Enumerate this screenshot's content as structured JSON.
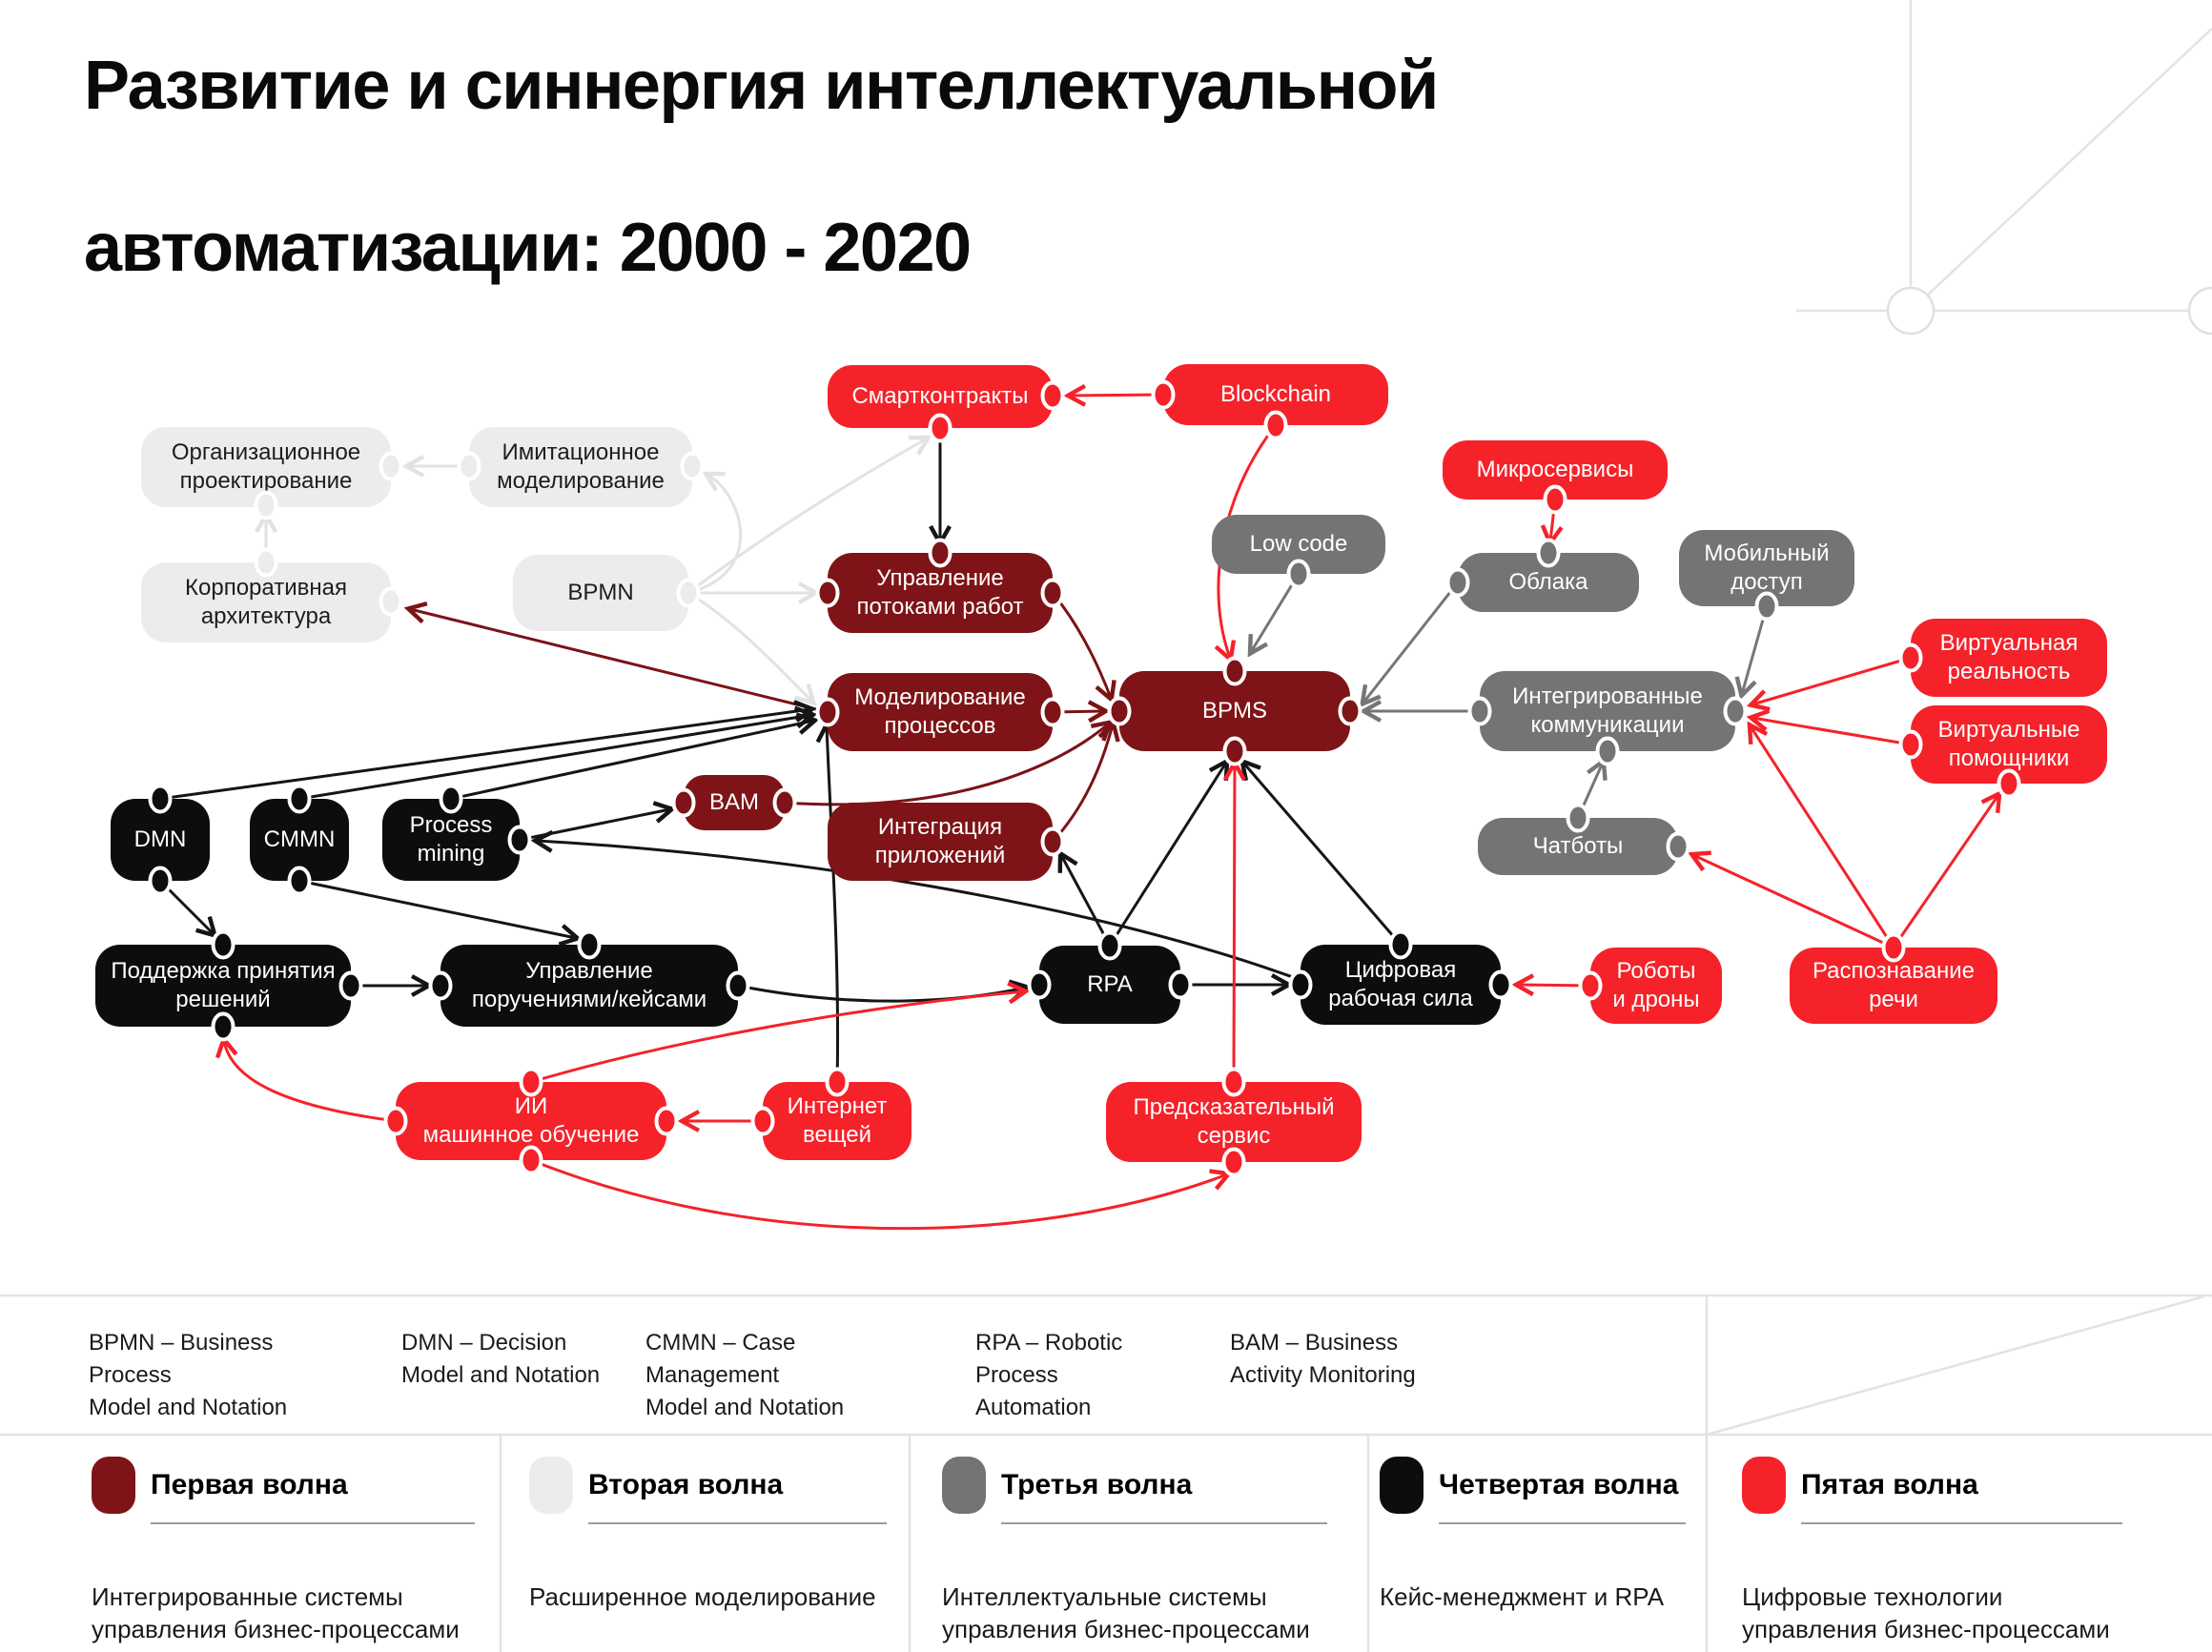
{
  "header": {
    "title_line1": "Развитие и синнергия интеллектуальной",
    "title_line2": "автоматизации: 2000 - 2020"
  },
  "waves": [
    {
      "name": "Первая волна",
      "color": "#7E1417",
      "description": "Интегрированные системы\nуправления бизнес-процессами"
    },
    {
      "name": "Вторая волна",
      "color": "#ECECEC",
      "description": "Расширенное моделирование"
    },
    {
      "name": "Третья волна",
      "color": "#747474",
      "description": "Интеллектуальные системы\nуправления бизнес-процессами"
    },
    {
      "name": "Четвертая волна",
      "color": "#0D0D0D",
      "description": "Кейс-менеджмент и RPA"
    },
    {
      "name": "Пятая волна",
      "color": "#F5222A",
      "description": "Цифровые технологии\nуправления бизнес-процессами"
    }
  ],
  "abbreviations": [
    {
      "text": "BPMN – Business Process\nModel and Notation"
    },
    {
      "text": "DMN – Decision\nModel and Notation"
    },
    {
      "text": "CMMN – Case Management\nModel and Notation"
    },
    {
      "text": "RPA – Robotic\nProcess Automation"
    },
    {
      "text": "BAM – Business\nActivity Monitoring"
    }
  ],
  "nodes": {
    "smart": {
      "label": "Смартконтракты"
    },
    "blockchain": {
      "label": "Blockchain"
    },
    "orgdesign": {
      "label": "Организационное\nпроектирование"
    },
    "simulation": {
      "label": "Имитационное\nмоделирование"
    },
    "microservices": {
      "label": "Микросервисы"
    },
    "corparch": {
      "label": "Корпоративная\nархитектура"
    },
    "bpmn": {
      "label": "BPMN"
    },
    "workflow": {
      "label": "Управление\nпотоками работ"
    },
    "lowcode": {
      "label": "Low code"
    },
    "clouds": {
      "label": "Облака"
    },
    "mobile": {
      "label": "Мобильный\nдоступ"
    },
    "procmodel": {
      "label": "Моделирование\nпроцессов"
    },
    "bpms": {
      "label": "BPMS"
    },
    "integcomm": {
      "label": "Интегрированные\nкоммуникации"
    },
    "vr": {
      "label": "Виртуальная\nреальность"
    },
    "va": {
      "label": "Виртуальные\nпомощники"
    },
    "bam": {
      "label": "BAM"
    },
    "appint": {
      "label": "Интеграция\nприложений"
    },
    "chatbots": {
      "label": "Чатботы"
    },
    "dmn": {
      "label": "DMN"
    },
    "cmmn": {
      "label": "CMMN"
    },
    "procmining": {
      "label": "Process\nmining"
    },
    "decision": {
      "label": "Поддержка принятия\nрешений"
    },
    "cases": {
      "label": "Управление\nпоручениями/кейсами"
    },
    "rpa": {
      "label": "RPA"
    },
    "digwork": {
      "label": "Цифровая\nрабочая сила"
    },
    "robots": {
      "label": "Роботы\nи дроны"
    },
    "speech": {
      "label": "Распознавание\nречи"
    },
    "ai": {
      "label": "ИИ\nмашинное обучение"
    },
    "iot": {
      "label": "Интернет\nвещей"
    },
    "predictive": {
      "label": "Предсказательный\nсервис"
    }
  }
}
